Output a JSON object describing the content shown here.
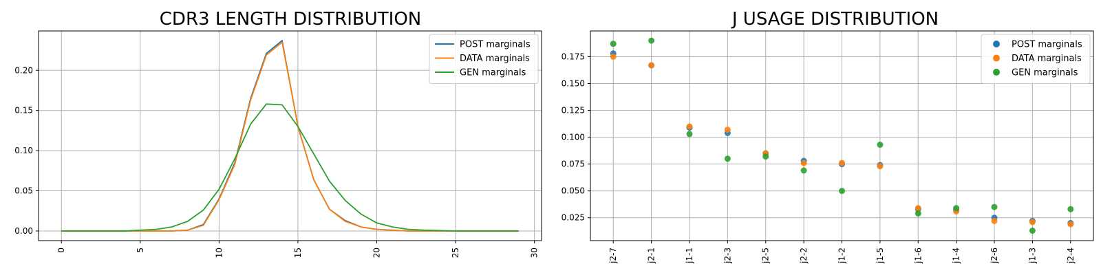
{
  "chart_data": [
    {
      "type": "line",
      "title": "CDR3 LENGTH DISTRIBUTION",
      "xlabel": "",
      "ylabel": "",
      "xlim": [
        -1.45,
        30.45
      ],
      "ylim": [
        -0.012,
        0.249
      ],
      "xticks": [
        0,
        5,
        10,
        15,
        20,
        25,
        30
      ],
      "yticks": [
        0.0,
        0.05,
        0.1,
        0.15,
        0.2
      ],
      "ytick_labels": [
        "0.00",
        "0.05",
        "0.10",
        "0.15",
        "0.20"
      ],
      "grid": true,
      "legend_position": "top-right",
      "x": [
        0,
        1,
        2,
        3,
        4,
        5,
        6,
        7,
        8,
        9,
        10,
        11,
        12,
        13,
        14,
        15,
        16,
        17,
        18,
        19,
        20,
        21,
        22,
        23,
        24,
        25,
        26,
        27,
        28,
        29
      ],
      "series": [
        {
          "name": "POST marginals",
          "color": "#1f77b4",
          "values": [
            0,
            0,
            0,
            0,
            0,
            0,
            0,
            0,
            0.001,
            0.008,
            0.04,
            0.085,
            0.165,
            0.221,
            0.237,
            0.13,
            0.064,
            0.027,
            0.013,
            0.005,
            0.002,
            0.001,
            0,
            0,
            0,
            0,
            0,
            0,
            0,
            0
          ]
        },
        {
          "name": "DATA marginals",
          "color": "#ff7f0e",
          "values": [
            0,
            0,
            0,
            0,
            0,
            0,
            0,
            0,
            0.001,
            0.007,
            0.039,
            0.083,
            0.163,
            0.219,
            0.235,
            0.13,
            0.064,
            0.027,
            0.012,
            0.005,
            0.002,
            0.001,
            0,
            0,
            0,
            0,
            0,
            0,
            0,
            0
          ]
        },
        {
          "name": "GEN marginals",
          "color": "#2ca02c",
          "values": [
            0,
            0,
            0,
            0,
            0,
            0.001,
            0.002,
            0.005,
            0.012,
            0.026,
            0.052,
            0.09,
            0.133,
            0.158,
            0.157,
            0.13,
            0.096,
            0.062,
            0.038,
            0.021,
            0.01,
            0.005,
            0.002,
            0.001,
            0.0005,
            0,
            0,
            0,
            0,
            0
          ]
        }
      ]
    },
    {
      "type": "scatter",
      "title": "J USAGE DISTRIBUTION",
      "xlabel": "",
      "ylabel": "",
      "categories": [
        "j2-7",
        "j2-1",
        "j1-1",
        "j2-3",
        "j2-5",
        "j2-2",
        "j1-2",
        "j1-5",
        "j1-6",
        "j1-4",
        "j2-6",
        "j1-3",
        "j2-4"
      ],
      "ylim": [
        0.0037,
        0.199
      ],
      "yticks": [
        0.025,
        0.05,
        0.075,
        0.1,
        0.125,
        0.15,
        0.175
      ],
      "ytick_labels": [
        "0.025",
        "0.050",
        "0.075",
        "0.100",
        "0.125",
        "0.150",
        "0.175"
      ],
      "grid": true,
      "legend_position": "top-right",
      "series": [
        {
          "name": "POST marginals",
          "color": "#1f77b4",
          "values": [
            0.178,
            0.167,
            0.109,
            0.104,
            0.085,
            0.078,
            0.075,
            0.074,
            0.033,
            0.032,
            0.025,
            0.022,
            0.02
          ]
        },
        {
          "name": "DATA marginals",
          "color": "#ff7f0e",
          "values": [
            0.175,
            0.167,
            0.11,
            0.107,
            0.085,
            0.076,
            0.076,
            0.073,
            0.034,
            0.031,
            0.022,
            0.021,
            0.019
          ]
        },
        {
          "name": "GEN marginals",
          "color": "#2ca02c",
          "values": [
            0.187,
            0.19,
            0.103,
            0.08,
            0.082,
            0.069,
            0.05,
            0.093,
            0.029,
            0.034,
            0.035,
            0.013,
            0.033
          ]
        }
      ]
    }
  ]
}
